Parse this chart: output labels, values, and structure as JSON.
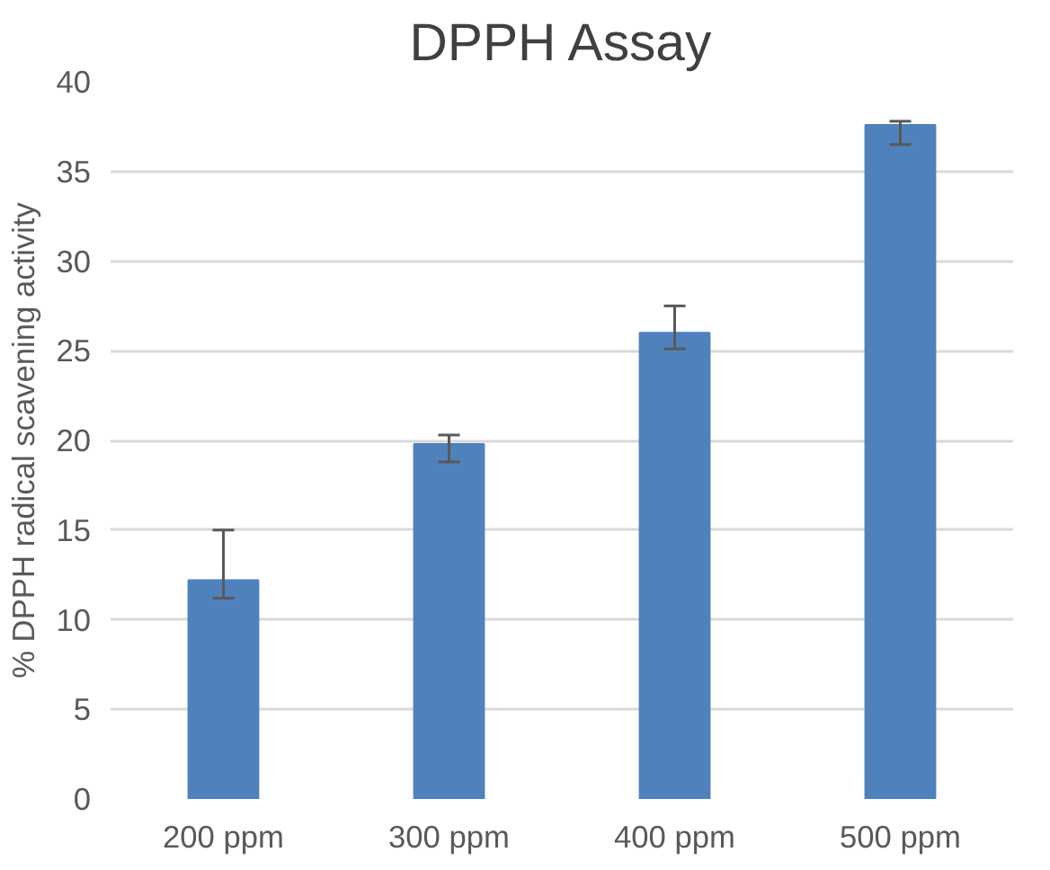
{
  "chart_data": {
    "type": "bar",
    "title": "DPPH Assay",
    "ylabel": "% DPPH radical scavening activity",
    "categories": [
      "200 ppm",
      "300 ppm",
      "400 ppm",
      "500 ppm"
    ],
    "values": [
      12.2,
      19.8,
      26.0,
      37.6
    ],
    "errors": [
      [
        11.2,
        15.0
      ],
      [
        18.8,
        20.3
      ],
      [
        25.1,
        27.5
      ],
      [
        36.5,
        37.8
      ]
    ],
    "color": "#4f81bd",
    "ylim": [
      0,
      40
    ],
    "yticks": [
      0,
      5,
      10,
      15,
      20,
      25,
      30,
      35,
      40
    ],
    "grid": "y"
  }
}
